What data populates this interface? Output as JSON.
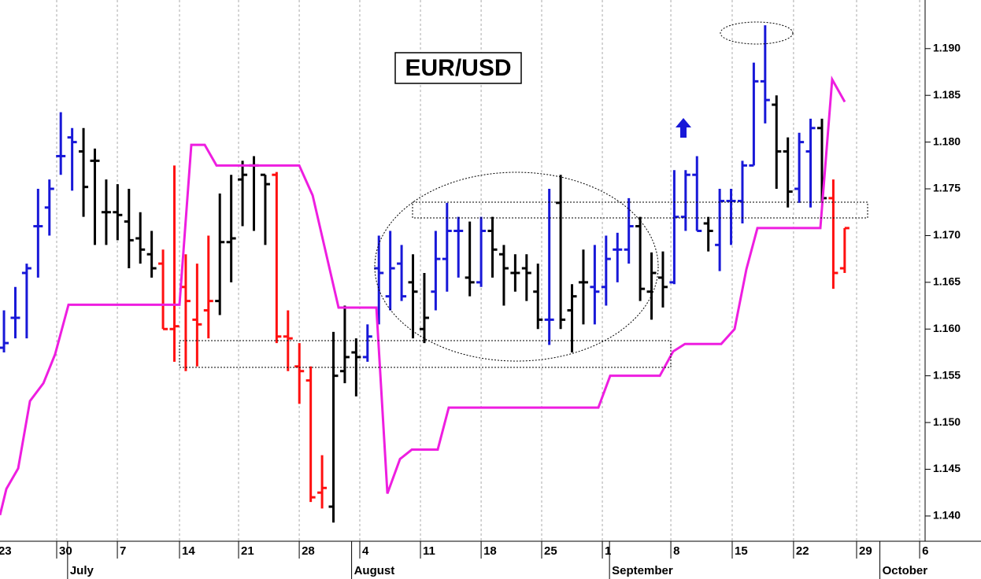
{
  "chart_data": {
    "type": "ohlc",
    "title": "EUR/USD",
    "xlim": [
      -0.35,
      81.08
    ],
    "ylim": [
      1.1373,
      1.1952
    ],
    "grid": true,
    "yticks": [
      {
        "value": 1.14,
        "label": "1.140"
      },
      {
        "value": 1.145,
        "label": "1.145"
      },
      {
        "value": 1.15,
        "label": "1.150"
      },
      {
        "value": 1.155,
        "label": "1.155"
      },
      {
        "value": 1.16,
        "label": "1.160"
      },
      {
        "value": 1.165,
        "label": "1.165"
      },
      {
        "value": 1.17,
        "label": "1.170"
      },
      {
        "value": 1.175,
        "label": "1.175"
      },
      {
        "value": 1.18,
        "label": "1.180"
      },
      {
        "value": 1.185,
        "label": "1.185"
      },
      {
        "value": 1.19,
        "label": "1.190"
      }
    ],
    "xticks": [
      {
        "value": -0.7,
        "label": "23"
      },
      {
        "value": 4.64,
        "label": "30"
      },
      {
        "value": 9.98,
        "label": "7"
      },
      {
        "value": 15.45,
        "label": "14"
      },
      {
        "value": 20.65,
        "label": "21"
      },
      {
        "value": 25.99,
        "label": "28"
      },
      {
        "value": 31.32,
        "label": "4"
      },
      {
        "value": 36.66,
        "label": "11"
      },
      {
        "value": 42.0,
        "label": "18"
      },
      {
        "value": 47.33,
        "label": "25"
      },
      {
        "value": 52.67,
        "label": "1"
      },
      {
        "value": 58.7,
        "label": "8"
      },
      {
        "value": 64.1,
        "label": "15"
      },
      {
        "value": 69.5,
        "label": "22"
      },
      {
        "value": 75.05,
        "label": "29"
      },
      {
        "value": 80.6,
        "label": "6"
      }
    ],
    "month_ticks": [
      {
        "value": 5.6,
        "label": "July"
      },
      {
        "value": 30.6,
        "label": "August"
      },
      {
        "value": 53.3,
        "label": "September"
      },
      {
        "value": 77.1,
        "label": "October"
      }
    ],
    "open": [
      1.158,
      1.1612,
      1.166,
      1.171,
      1.173,
      1.1785,
      1.1805,
      1.179,
      1.178,
      1.1725,
      1.1725,
      1.1715,
      1.1697,
      1.168,
      1.167,
      1.16,
      1.1645,
      1.161,
      1.162,
      1.163,
      1.1693,
      1.176,
      1.1775,
      1.1765,
      1.1765,
      1.1592,
      1.156,
      1.1545,
      1.1425,
      1.141,
      1.1555,
      1.1575,
      1.157,
      1.1665,
      1.1635,
      1.167,
      1.165,
      1.16,
      1.164,
      1.1675,
      1.1705,
      1.1655,
      1.165,
      1.1705,
      1.168,
      1.166,
      1.1665,
      1.164,
      1.161,
      1.1735,
      1.162,
      1.165,
      1.1645,
      1.1645,
      1.1685,
      1.1685,
      1.171,
      1.164,
      1.1655,
      1.165,
      1.172,
      1.1765,
      1.1713,
      1.169,
      1.1737,
      1.1737,
      1.1775,
      1.1865,
      1.184,
      1.179,
      1.175,
      1.179,
      1.1815,
      1.174,
      1.1665
    ],
    "high": [
      1.162,
      1.1645,
      1.167,
      1.175,
      1.176,
      1.1832,
      1.1815,
      1.1815,
      1.1793,
      1.176,
      1.1755,
      1.175,
      1.1725,
      1.1705,
      1.1685,
      1.1775,
      1.168,
      1.167,
      1.17,
      1.1745,
      1.1765,
      1.178,
      1.1785,
      1.1765,
      1.1768,
      1.162,
      1.1585,
      1.156,
      1.1465,
      1.1597,
      1.1625,
      1.159,
      1.1605,
      1.17,
      1.1705,
      1.169,
      1.168,
      1.166,
      1.1705,
      1.1735,
      1.172,
      1.1715,
      1.172,
      1.172,
      1.169,
      1.168,
      1.168,
      1.167,
      1.175,
      1.1765,
      1.1648,
      1.1685,
      1.169,
      1.17,
      1.1703,
      1.174,
      1.172,
      1.1682,
      1.1683,
      1.177,
      1.177,
      1.1785,
      1.172,
      1.175,
      1.175,
      1.178,
      1.1885,
      1.1925,
      1.185,
      1.1805,
      1.181,
      1.1825,
      1.1825,
      1.176,
      1.1708
    ],
    "low": [
      1.1575,
      1.159,
      1.159,
      1.1655,
      1.17,
      1.1765,
      1.1748,
      1.172,
      1.169,
      1.169,
      1.1695,
      1.1665,
      1.167,
      1.1655,
      1.16,
      1.1565,
      1.1555,
      1.156,
      1.159,
      1.1615,
      1.165,
      1.171,
      1.1705,
      1.169,
      1.1585,
      1.1555,
      1.152,
      1.1415,
      1.1408,
      1.1393,
      1.1542,
      1.1528,
      1.1565,
      1.1605,
      1.162,
      1.163,
      1.159,
      1.1585,
      1.162,
      1.164,
      1.1655,
      1.1635,
      1.1645,
      1.1655,
      1.1625,
      1.164,
      1.163,
      1.16,
      1.1583,
      1.16,
      1.1575,
      1.1605,
      1.1605,
      1.1625,
      1.165,
      1.167,
      1.163,
      1.161,
      1.1623,
      1.1648,
      1.1705,
      1.1705,
      1.1683,
      1.1662,
      1.169,
      1.1713,
      1.1775,
      1.182,
      1.175,
      1.173,
      1.1735,
      1.173,
      1.1735,
      1.1643,
      1.166
    ],
    "close": [
      1.1585,
      1.1612,
      1.1665,
      1.171,
      1.175,
      1.1785,
      1.18,
      1.1752,
      1.178,
      1.1725,
      1.1722,
      1.1695,
      1.1685,
      1.1665,
      1.16,
      1.1603,
      1.163,
      1.1605,
      1.163,
      1.1693,
      1.1697,
      1.1765,
      1.1775,
      1.1755,
      1.1592,
      1.159,
      1.1555,
      1.142,
      1.143,
      1.155,
      1.157,
      1.157,
      1.1592,
      1.166,
      1.1665,
      1.1635,
      1.164,
      1.1612,
      1.1675,
      1.1705,
      1.1705,
      1.165,
      1.1705,
      1.1685,
      1.1665,
      1.166,
      1.166,
      1.161,
      1.161,
      1.161,
      1.1635,
      1.165,
      1.164,
      1.1675,
      1.1685,
      1.171,
      1.1643,
      1.166,
      1.1645,
      1.172,
      1.1765,
      1.1705,
      1.1705,
      1.1737,
      1.1737,
      1.1775,
      1.1865,
      1.1845,
      1.179,
      1.1747,
      1.18,
      1.1815,
      1.174,
      1.166,
      1.1708
    ],
    "colors": [
      "#1818d8",
      "#1818d8",
      "#1818d8",
      "#1818d8",
      "#1818d8",
      "#1818d8",
      "#1818d8",
      "#000000",
      "#000000",
      "#000000",
      "#000000",
      "#000000",
      "#000000",
      "#000000",
      "#ff1010",
      "#ff1010",
      "#ff1010",
      "#ff1010",
      "#ff1010",
      "#000000",
      "#000000",
      "#000000",
      "#000000",
      "#000000",
      "#ff1010",
      "#ff1010",
      "#ff1010",
      "#ff1010",
      "#ff1010",
      "#000000",
      "#000000",
      "#000000",
      "#1818d8",
      "#1818d8",
      "#1818d8",
      "#1818d8",
      "#000000",
      "#000000",
      "#1818d8",
      "#1818d8",
      "#1818d8",
      "#000000",
      "#1818d8",
      "#000000",
      "#000000",
      "#000000",
      "#000000",
      "#000000",
      "#1818d8",
      "#000000",
      "#000000",
      "#000000",
      "#1818d8",
      "#1818d8",
      "#1818d8",
      "#1818d8",
      "#000000",
      "#000000",
      "#000000",
      "#1818d8",
      "#1818d8",
      "#1818d8",
      "#000000",
      "#1818d8",
      "#1818d8",
      "#1818d8",
      "#1818d8",
      "#1818d8",
      "#000000",
      "#000000",
      "#1818d8",
      "#1818d8",
      "#000000",
      "#ff1010",
      "#ff1010"
    ],
    "line": {
      "color": "#ee1ee0",
      "x": [
        -0.35,
        0.21,
        1.25,
        2.29,
        3.47,
        4.5,
        5.68,
        15.45,
        16.49,
        17.67,
        18.71,
        25.99,
        27.17,
        29.45,
        32.78,
        33.75,
        34.86,
        35.9,
        38.18,
        39.15,
        52.32,
        53.36,
        57.73,
        58.9,
        59.94,
        63.13,
        64.31,
        65.35,
        66.32,
        71.86,
        72.9,
        74.01
      ],
      "values": [
        1.1401,
        1.1429,
        1.1451,
        1.1523,
        1.1542,
        1.1573,
        1.1626,
        1.1626,
        1.1797,
        1.1797,
        1.1775,
        1.1775,
        1.1743,
        1.1623,
        1.1623,
        1.1424,
        1.1461,
        1.1471,
        1.1471,
        1.1516,
        1.1516,
        1.155,
        1.155,
        1.1576,
        1.1584,
        1.1584,
        1.16,
        1.1664,
        1.1708,
        1.1708,
        1.1867,
        1.1843
      ]
    }
  }
}
